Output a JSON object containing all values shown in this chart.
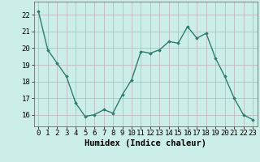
{
  "x": [
    0,
    1,
    2,
    3,
    4,
    5,
    6,
    7,
    8,
    9,
    10,
    11,
    12,
    13,
    14,
    15,
    16,
    17,
    18,
    19,
    20,
    21,
    22,
    23
  ],
  "y": [
    22.2,
    19.9,
    19.1,
    18.3,
    16.7,
    15.9,
    16.0,
    16.3,
    16.1,
    17.2,
    18.1,
    19.8,
    19.7,
    19.9,
    20.4,
    20.3,
    21.3,
    20.6,
    20.9,
    19.4,
    18.3,
    17.0,
    16.0,
    15.7
  ],
  "line_color": "#2e7d6e",
  "marker": "D",
  "marker_size": 1.8,
  "line_width": 1.0,
  "xlabel": "Humidex (Indice chaleur)",
  "xlabel_fontsize": 7.5,
  "ylabel_ticks": [
    16,
    17,
    18,
    19,
    20,
    21,
    22
  ],
  "ylim": [
    15.3,
    22.8
  ],
  "xlim": [
    -0.5,
    23.5
  ],
  "bg_color": "#cceee8",
  "grid_color": "#c0b0b8",
  "tick_fontsize": 6.5,
  "xtick_labels": [
    "0",
    "1",
    "2",
    "3",
    "4",
    "5",
    "6",
    "7",
    "8",
    "9",
    "10",
    "11",
    "12",
    "13",
    "14",
    "15",
    "16",
    "17",
    "18",
    "19",
    "20",
    "21",
    "22",
    "23"
  ]
}
